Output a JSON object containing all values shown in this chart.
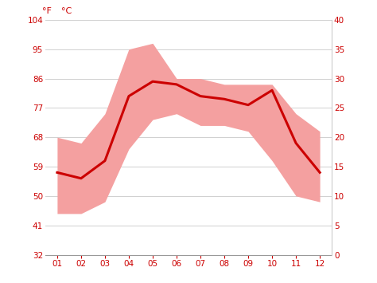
{
  "months": [
    1,
    2,
    3,
    4,
    5,
    6,
    7,
    8,
    9,
    10,
    11,
    12
  ],
  "month_labels": [
    "01",
    "02",
    "03",
    "04",
    "05",
    "06",
    "07",
    "08",
    "09",
    "10",
    "11",
    "12"
  ],
  "avg_temp_c": [
    14,
    13,
    16,
    27,
    29.5,
    29,
    27,
    26.5,
    25.5,
    28,
    19,
    14
  ],
  "max_temp_c": [
    20,
    19,
    24,
    35,
    36,
    30,
    30,
    29,
    29,
    29,
    24,
    21
  ],
  "min_temp_c": [
    7,
    7,
    9,
    18,
    23,
    24,
    22,
    22,
    21,
    16,
    10,
    9
  ],
  "line_color": "#cc0000",
  "band_color": "#f4a0a0",
  "background_color": "#ffffff",
  "grid_color": "#d0d0d0",
  "yticks_c": [
    0,
    5,
    10,
    15,
    20,
    25,
    30,
    35,
    40
  ],
  "yticks_f": [
    32,
    41,
    50,
    59,
    68,
    77,
    86,
    95,
    104
  ],
  "ylim_c": [
    0,
    40
  ],
  "xlim": [
    0.5,
    12.5
  ],
  "tick_color": "#cc0000",
  "tick_fontsize": 7.5
}
